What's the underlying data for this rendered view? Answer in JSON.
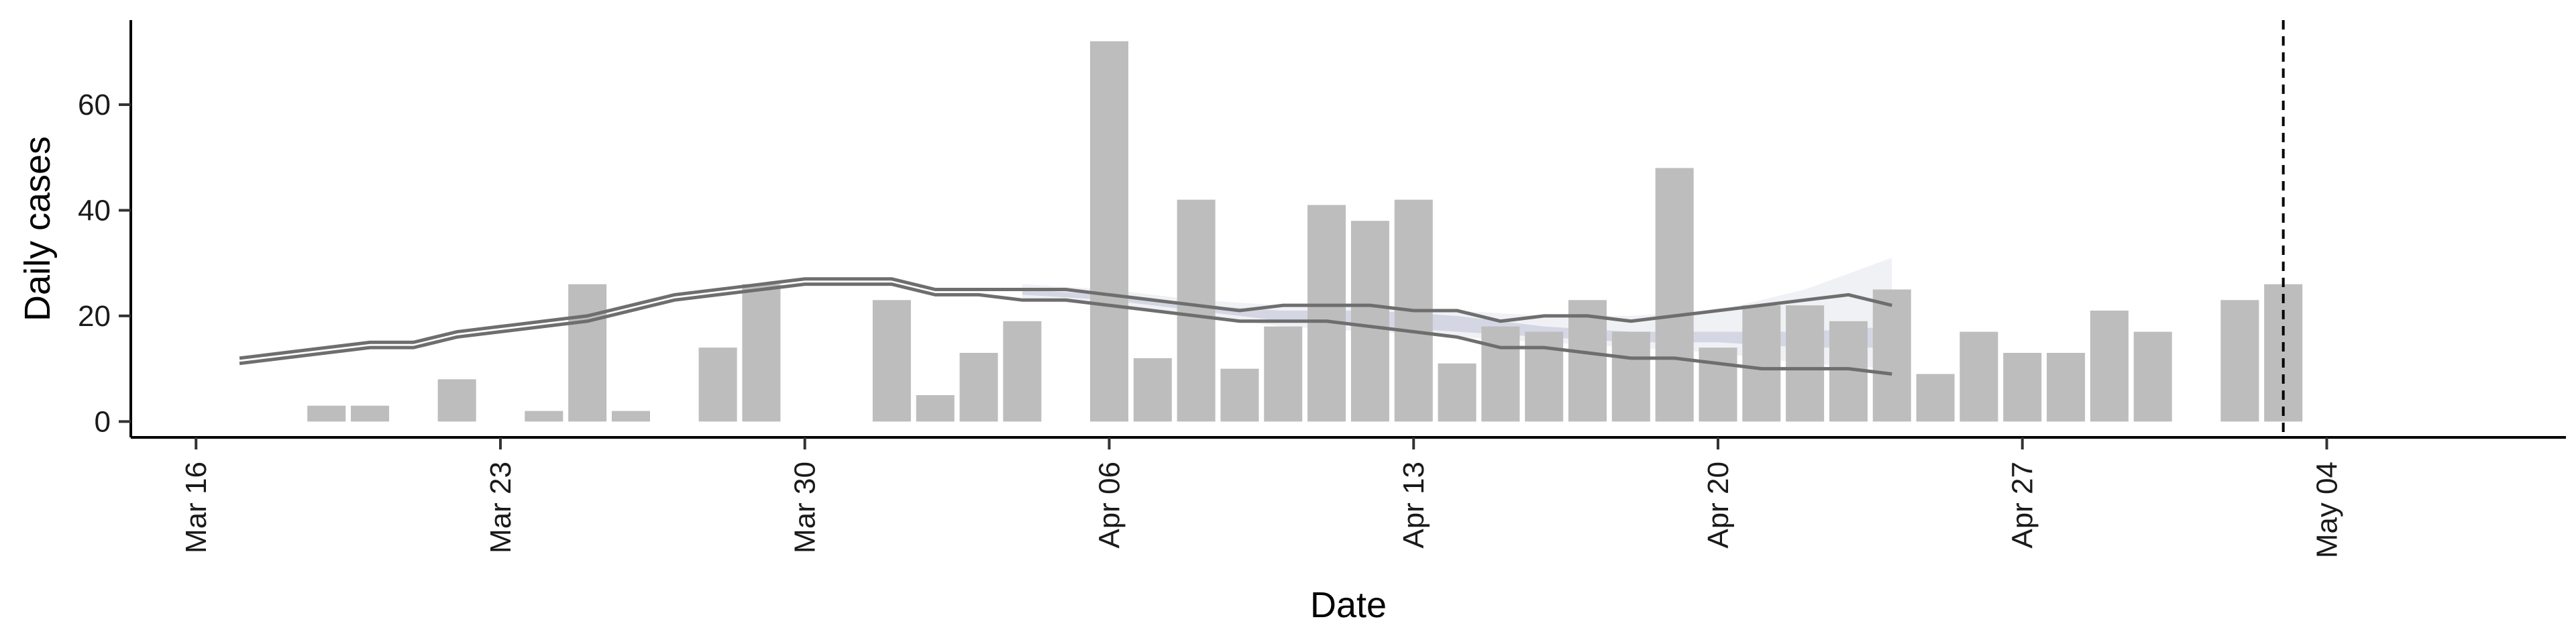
{
  "chart_data": {
    "type": "bar",
    "xlabel": "Date",
    "ylabel": "Daily cases",
    "x_start": "2020-03-16",
    "ylim": [
      -3,
      76
    ],
    "yticks": [
      0,
      20,
      40,
      60
    ],
    "xticks": [
      "Mar 16",
      "Mar 23",
      "Mar 30",
      "Apr 06",
      "Apr 13",
      "Apr 20",
      "Apr 27",
      "May 04"
    ],
    "bar_color": "#bdbdbd",
    "line_color": "#6e6e6e",
    "band_color": "#aab2c8",
    "bars": [
      {
        "date": "Mar 19",
        "value": 3
      },
      {
        "date": "Mar 20",
        "value": 3
      },
      {
        "date": "Mar 22",
        "value": 8
      },
      {
        "date": "Mar 24",
        "value": 2
      },
      {
        "date": "Mar 25",
        "value": 26
      },
      {
        "date": "Mar 26",
        "value": 2
      },
      {
        "date": "Mar 28",
        "value": 14
      },
      {
        "date": "Mar 29",
        "value": 26
      },
      {
        "date": "Apr 01",
        "value": 23
      },
      {
        "date": "Apr 02",
        "value": 5
      },
      {
        "date": "Apr 03",
        "value": 13
      },
      {
        "date": "Apr 04",
        "value": 19
      },
      {
        "date": "Apr 06",
        "value": 72
      },
      {
        "date": "Apr 07",
        "value": 12
      },
      {
        "date": "Apr 08",
        "value": 42
      },
      {
        "date": "Apr 09",
        "value": 10
      },
      {
        "date": "Apr 10",
        "value": 18
      },
      {
        "date": "Apr 11",
        "value": 41
      },
      {
        "date": "Apr 12",
        "value": 38
      },
      {
        "date": "Apr 13",
        "value": 42
      },
      {
        "date": "Apr 14",
        "value": 11
      },
      {
        "date": "Apr 15",
        "value": 18
      },
      {
        "date": "Apr 16",
        "value": 17
      },
      {
        "date": "Apr 17",
        "value": 23
      },
      {
        "date": "Apr 18",
        "value": 17
      },
      {
        "date": "Apr 19",
        "value": 48
      },
      {
        "date": "Apr 20",
        "value": 14
      },
      {
        "date": "Apr 21",
        "value": 22
      },
      {
        "date": "Apr 22",
        "value": 22
      },
      {
        "date": "Apr 23",
        "value": 19
      },
      {
        "date": "Apr 24",
        "value": 25
      },
      {
        "date": "Apr 25",
        "value": 9
      },
      {
        "date": "Apr 26",
        "value": 17
      },
      {
        "date": "Apr 27",
        "value": 13
      },
      {
        "date": "Apr 28",
        "value": 13
      },
      {
        "date": "Apr 29",
        "value": 21
      },
      {
        "date": "Apr 30",
        "value": 17
      },
      {
        "date": "May 02",
        "value": 23
      },
      {
        "date": "May 03",
        "value": 26
      }
    ],
    "vline_date": "May 03",
    "trend_line_upper": [
      [
        17,
        12
      ],
      [
        18,
        13
      ],
      [
        19,
        14
      ],
      [
        20,
        15
      ],
      [
        21,
        15
      ],
      [
        22,
        17
      ],
      [
        23,
        18
      ],
      [
        24,
        19
      ],
      [
        25,
        20
      ],
      [
        26,
        22
      ],
      [
        27,
        24
      ],
      [
        28,
        25
      ],
      [
        29,
        26
      ],
      [
        30,
        27
      ],
      [
        31,
        27
      ],
      [
        32,
        27
      ],
      [
        33,
        25
      ],
      [
        34,
        25
      ],
      [
        35,
        25
      ],
      [
        36,
        25
      ],
      [
        37,
        24
      ],
      [
        38,
        23
      ],
      [
        39,
        22
      ],
      [
        40,
        21
      ],
      [
        41,
        22
      ],
      [
        42,
        22
      ],
      [
        43,
        22
      ],
      [
        44,
        21
      ],
      [
        45,
        21
      ],
      [
        46,
        19
      ],
      [
        47,
        20
      ],
      [
        48,
        20
      ],
      [
        49,
        19
      ],
      [
        50,
        20
      ],
      [
        51,
        21
      ],
      [
        52,
        22
      ],
      [
        53,
        23
      ],
      [
        54,
        24
      ],
      [
        55,
        22
      ]
    ],
    "trend_line_lower": [
      [
        17,
        11
      ],
      [
        18,
        12
      ],
      [
        19,
        13
      ],
      [
        20,
        14
      ],
      [
        21,
        14
      ],
      [
        22,
        16
      ],
      [
        23,
        17
      ],
      [
        24,
        18
      ],
      [
        25,
        19
      ],
      [
        26,
        21
      ],
      [
        27,
        23
      ],
      [
        28,
        24
      ],
      [
        29,
        25
      ],
      [
        30,
        26
      ],
      [
        31,
        26
      ],
      [
        32,
        26
      ],
      [
        33,
        24
      ],
      [
        34,
        24
      ],
      [
        35,
        23
      ],
      [
        36,
        23
      ],
      [
        37,
        22
      ],
      [
        38,
        21
      ],
      [
        39,
        20
      ],
      [
        40,
        19
      ],
      [
        41,
        19
      ],
      [
        42,
        19
      ],
      [
        43,
        18
      ],
      [
        44,
        17
      ],
      [
        45,
        16
      ],
      [
        46,
        14
      ],
      [
        47,
        14
      ],
      [
        48,
        13
      ],
      [
        49,
        12
      ],
      [
        50,
        12
      ],
      [
        51,
        11
      ],
      [
        52,
        10
      ],
      [
        53,
        10
      ],
      [
        54,
        10
      ],
      [
        55,
        9
      ]
    ],
    "band_inner": [
      [
        35,
        24,
        25
      ],
      [
        37,
        23,
        24
      ],
      [
        39,
        21,
        22
      ],
      [
        41,
        19,
        21
      ],
      [
        43,
        18,
        21
      ],
      [
        45,
        17,
        20
      ],
      [
        47,
        16,
        18
      ],
      [
        49,
        15,
        17
      ],
      [
        51,
        15,
        17
      ],
      [
        53,
        14,
        17
      ],
      [
        55,
        14,
        18
      ]
    ],
    "band_outer": [
      [
        35,
        23,
        26
      ],
      [
        37,
        22,
        25
      ],
      [
        39,
        20,
        23
      ],
      [
        41,
        18,
        22
      ],
      [
        43,
        17,
        22
      ],
      [
        45,
        16,
        21
      ],
      [
        47,
        15,
        20
      ],
      [
        49,
        14,
        20
      ],
      [
        51,
        13,
        21
      ],
      [
        53,
        11,
        25
      ],
      [
        55,
        10,
        31
      ]
    ]
  }
}
